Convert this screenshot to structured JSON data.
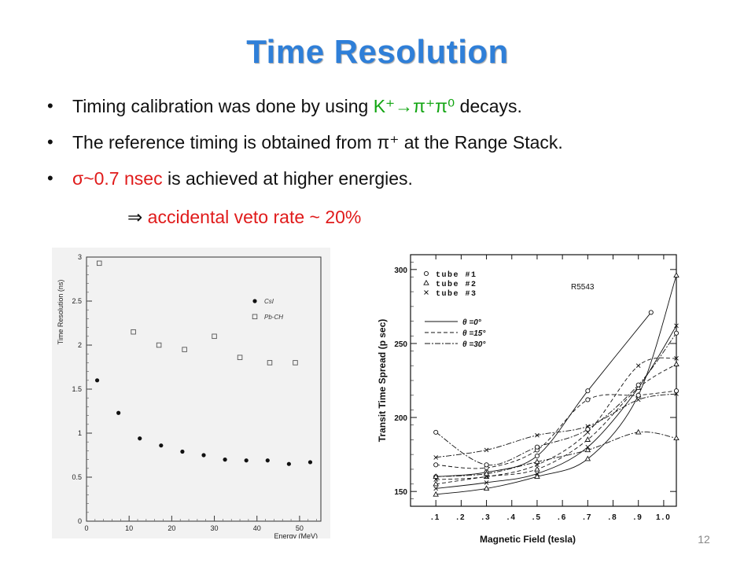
{
  "title": "Time Resolution",
  "bullets": [
    {
      "pre": "Timing calibration was done by using ",
      "highlight": "K⁺→π⁺π⁰",
      "post": " decays."
    },
    {
      "pre": "The reference timing is obtained from ",
      "highlight": "π⁺",
      "post": " at the Range Stack."
    },
    {
      "highlight": "σ~0.7  nsec",
      "post": " is achieved at higher energies."
    }
  ],
  "conclusion": {
    "arrow": "⇒",
    "text": " accidental veto rate ~ 20%"
  },
  "page_number": "12",
  "colors": {
    "title": "#2f7fd8",
    "red": "#e01b1b",
    "green": "#12a512"
  },
  "chart_data": [
    {
      "type": "scatter",
      "xlabel": "Energy (MeV)",
      "ylabel": "Time Resolution (ns)",
      "xlim": [
        0,
        55
      ],
      "ylim": [
        0,
        3
      ],
      "xticks": [
        "0",
        "10",
        "20",
        "30",
        "40",
        "50"
      ],
      "yticks": [
        "0",
        "0.5",
        "1",
        "1.5",
        "2",
        "2.5",
        "3"
      ],
      "legend_position": "top-right",
      "series": [
        {
          "name": "CsI",
          "marker": "filled-circle",
          "x": [
            2.5,
            7.5,
            12.5,
            17.5,
            22.5,
            27.5,
            32.5,
            37.5,
            42.5,
            47.5,
            52.5
          ],
          "y": [
            1.6,
            1.23,
            0.94,
            0.86,
            0.79,
            0.75,
            0.7,
            0.69,
            0.69,
            0.65,
            0.67
          ]
        },
        {
          "name": "Pb-CH",
          "marker": "open-square",
          "x": [
            3,
            11,
            17,
            23,
            30,
            36,
            43,
            49
          ],
          "y": [
            2.93,
            2.15,
            2.0,
            1.95,
            2.1,
            1.86,
            1.8,
            1.8
          ]
        }
      ]
    },
    {
      "type": "line",
      "xlabel": "Magnetic Field (tesla)",
      "ylabel": "Transit Time Spread (p sec)",
      "annotation": "R5543",
      "xlim": [
        0,
        1.05
      ],
      "ylim": [
        140,
        310
      ],
      "xticks": [
        ".1",
        ".2",
        ".3",
        ".4",
        ".5",
        ".6",
        ".7",
        ".8",
        ".9",
        "1.0"
      ],
      "yticks": [
        "150",
        "200",
        "250",
        "300"
      ],
      "legend_markers": [
        {
          "symbol": "o",
          "label": "tube #1"
        },
        {
          "symbol": "triangle",
          "label": "tube #2"
        },
        {
          "symbol": "x",
          "label": "tube #3"
        }
      ],
      "legend_lines": [
        {
          "style": "solid",
          "label": "θ =0°"
        },
        {
          "style": "dashed",
          "label": "θ =15°"
        },
        {
          "style": "dashdot",
          "label": "θ =30°"
        }
      ],
      "series": [
        {
          "marker": "o",
          "line": "solid",
          "x": [
            0.1,
            0.3,
            0.5,
            0.7,
            0.95
          ],
          "y": [
            160,
            163,
            174,
            218,
            271
          ]
        },
        {
          "marker": "triangle",
          "line": "solid",
          "x": [
            0.1,
            0.3,
            0.5,
            0.7,
            0.9,
            1.05
          ],
          "y": [
            148,
            152,
            160,
            172,
            215,
            296
          ]
        },
        {
          "marker": "x",
          "line": "solid",
          "x": [
            0.1,
            0.3,
            0.5,
            0.7,
            0.9,
            1.05
          ],
          "y": [
            152,
            156,
            162,
            180,
            220,
            262
          ]
        },
        {
          "marker": "o",
          "line": "dashed",
          "x": [
            0.1,
            0.3,
            0.5,
            0.7,
            0.9,
            1.05
          ],
          "y": [
            168,
            166,
            178,
            212,
            215,
            218
          ]
        },
        {
          "marker": "triangle",
          "line": "dashed",
          "x": [
            0.1,
            0.3,
            0.5,
            0.7,
            0.9,
            1.05
          ],
          "y": [
            155,
            160,
            165,
            185,
            220,
            236
          ]
        },
        {
          "marker": "x",
          "line": "dashed",
          "x": [
            0.1,
            0.3,
            0.5,
            0.7,
            0.9,
            1.05
          ],
          "y": [
            158,
            160,
            168,
            190,
            235,
            240
          ]
        },
        {
          "marker": "o",
          "line": "dashdot",
          "x": [
            0.1,
            0.3,
            0.5,
            0.7,
            0.9,
            1.05
          ],
          "y": [
            190,
            168,
            180,
            192,
            222,
            257
          ]
        },
        {
          "marker": "triangle",
          "line": "dashdot",
          "x": [
            0.1,
            0.3,
            0.5,
            0.7,
            0.9,
            1.05
          ],
          "y": [
            160,
            162,
            170,
            178,
            190,
            186
          ]
        },
        {
          "marker": "x",
          "line": "dashdot",
          "x": [
            0.1,
            0.3,
            0.5,
            0.7,
            0.9,
            1.05
          ],
          "y": [
            173,
            178,
            188,
            194,
            212,
            216
          ]
        }
      ]
    }
  ]
}
